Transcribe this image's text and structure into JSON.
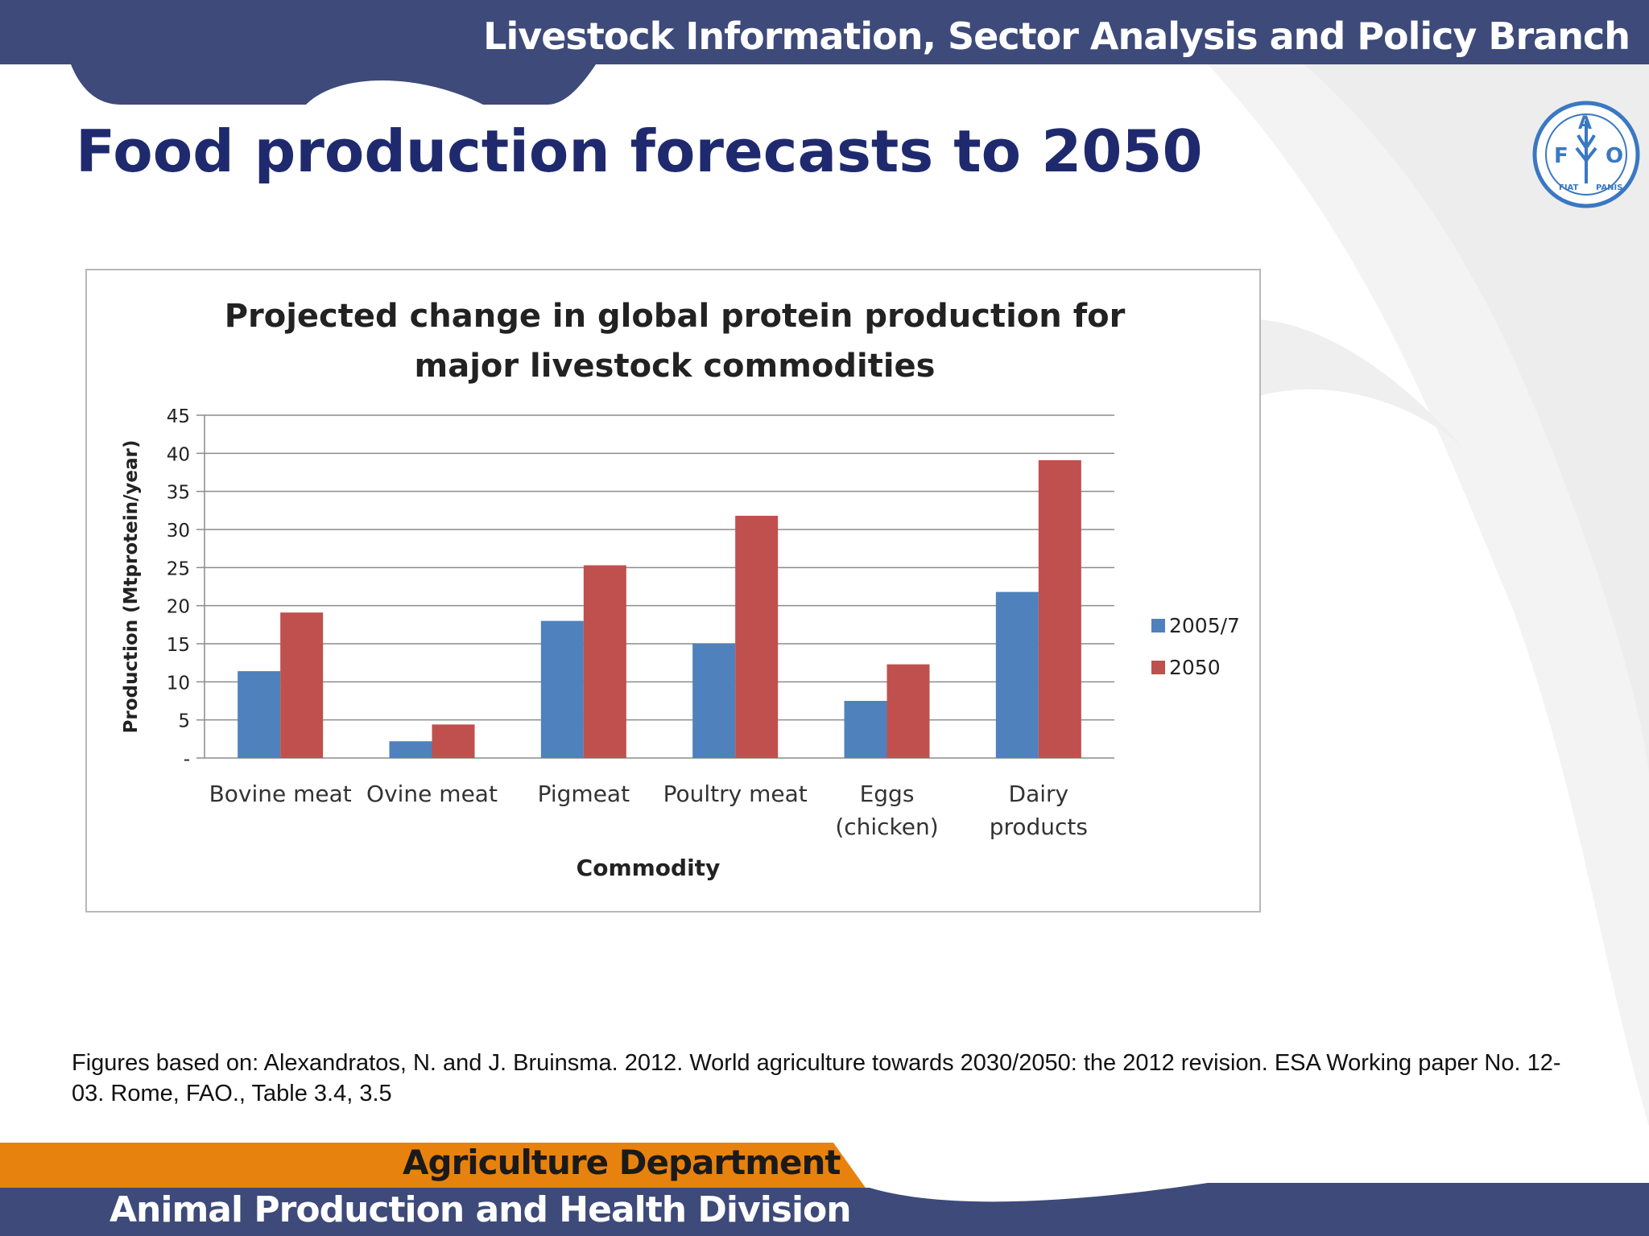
{
  "header": {
    "branch_name": "Livestock Information, Sector Analysis and Policy Branch"
  },
  "slide": {
    "title": "Food production forecasts to 2050"
  },
  "logo": {
    "text": "FAO FIAT PANIS"
  },
  "chart_data": {
    "type": "bar",
    "title_line1": "Projected change in global protein production for",
    "title_line2": "major livestock commodities",
    "xlabel": "Commodity",
    "ylabel": "Production (Mtprotein/year)",
    "ylim": [
      0,
      45
    ],
    "yticks": [
      0,
      5,
      10,
      15,
      20,
      25,
      30,
      35,
      40,
      45
    ],
    "ytick_labels": [
      "-",
      "5",
      "10",
      "15",
      "20",
      "25",
      "30",
      "35",
      "40",
      "45"
    ],
    "categories": [
      [
        "Bovine meat"
      ],
      [
        "Ovine meat"
      ],
      [
        "Pigmeat"
      ],
      [
        "Poultry meat"
      ],
      [
        "Eggs",
        "(chicken)"
      ],
      [
        "Dairy",
        "products"
      ]
    ],
    "series": [
      {
        "name": "2005/7",
        "color": "#4f81bd",
        "values": [
          11.4,
          2.2,
          18.0,
          15.0,
          7.5,
          21.8
        ]
      },
      {
        "name": "2050",
        "color": "#c0504d",
        "values": [
          19.1,
          4.4,
          25.3,
          31.8,
          12.3,
          39.1
        ]
      }
    ],
    "legend_position": "right",
    "grid": true
  },
  "footer": {
    "citation": "Figures based on: Alexandratos, N. and J. Bruinsma. 2012. World agriculture towards 2030/2050: the 2012 revision. ESA Working paper No. 12-03. Rome, FAO., Table 3.4, 3.5",
    "department": "Agriculture Department",
    "division": "Animal Production and Health Division"
  },
  "colors": {
    "header_blue": "#3d4a7a",
    "footer_orange": "#e8820e",
    "title_navy": "#1f2a6e",
    "logo_blue": "#3a78c2"
  }
}
